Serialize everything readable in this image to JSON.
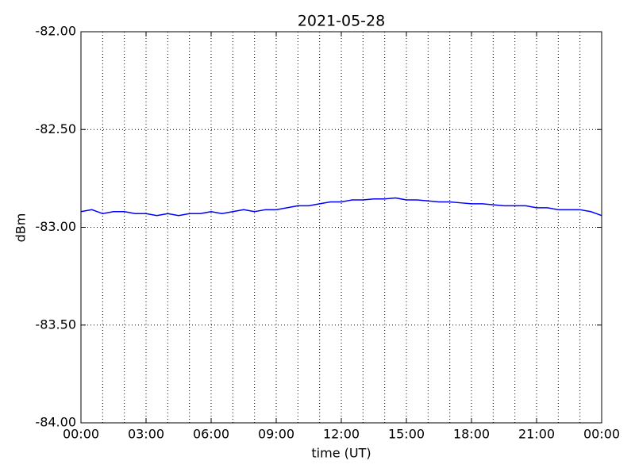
{
  "chart_data": {
    "type": "line",
    "title": "2021-05-28",
    "xlabel": "time (UT)",
    "ylabel": "dBm",
    "x": [
      0,
      0.5,
      1,
      1.5,
      2,
      2.5,
      3,
      3.5,
      4,
      4.5,
      5,
      5.5,
      6,
      6.5,
      7,
      7.5,
      8,
      8.5,
      9,
      9.5,
      10,
      10.5,
      11,
      11.5,
      12,
      12.5,
      13,
      13.5,
      14,
      14.5,
      15,
      15.5,
      16,
      16.5,
      17,
      17.5,
      18,
      18.5,
      19,
      19.5,
      20,
      20.5,
      21,
      21.5,
      22,
      22.5,
      23,
      23.5,
      24
    ],
    "series": [
      {
        "color": "#0000ff",
        "values": [
          -82.92,
          -82.91,
          -82.93,
          -82.92,
          -82.92,
          -82.93,
          -82.93,
          -82.94,
          -82.93,
          -82.94,
          -82.93,
          -82.93,
          -82.92,
          -82.93,
          -82.92,
          -82.91,
          -82.92,
          -82.91,
          -82.91,
          -82.9,
          -82.89,
          -82.89,
          -82.88,
          -82.87,
          -82.87,
          -82.86,
          -82.86,
          -82.855,
          -82.855,
          -82.85,
          -82.86,
          -82.86,
          -82.865,
          -82.87,
          -82.87,
          -82.875,
          -82.88,
          -82.88,
          -82.885,
          -82.89,
          -82.89,
          -82.89,
          -82.9,
          -82.9,
          -82.91,
          -82.91,
          -82.91,
          -82.92,
          -82.94
        ]
      }
    ],
    "xlim": [
      0,
      24
    ],
    "xticks": [
      {
        "value": 0,
        "label": "00:00"
      },
      {
        "value": 3,
        "label": "03:00"
      },
      {
        "value": 6,
        "label": "06:00"
      },
      {
        "value": 9,
        "label": "09:00"
      },
      {
        "value": 12,
        "label": "12:00"
      },
      {
        "value": 15,
        "label": "15:00"
      },
      {
        "value": 18,
        "label": "18:00"
      },
      {
        "value": 21,
        "label": "21:00"
      },
      {
        "value": 24,
        "label": "00:00"
      }
    ],
    "x_minor_ticks": [
      1,
      2,
      4,
      5,
      7,
      8,
      10,
      11,
      13,
      14,
      16,
      17,
      19,
      20,
      22,
      23
    ],
    "ylim": [
      -84,
      -82
    ],
    "yticks": [
      {
        "value": -84,
        "label": "-84.00"
      },
      {
        "value": -83.5,
        "label": "-83.50"
      },
      {
        "value": -83,
        "label": "-83.00"
      },
      {
        "value": -82.5,
        "label": "-82.50"
      },
      {
        "value": -82,
        "label": "-82.00"
      }
    ],
    "grid": true
  }
}
